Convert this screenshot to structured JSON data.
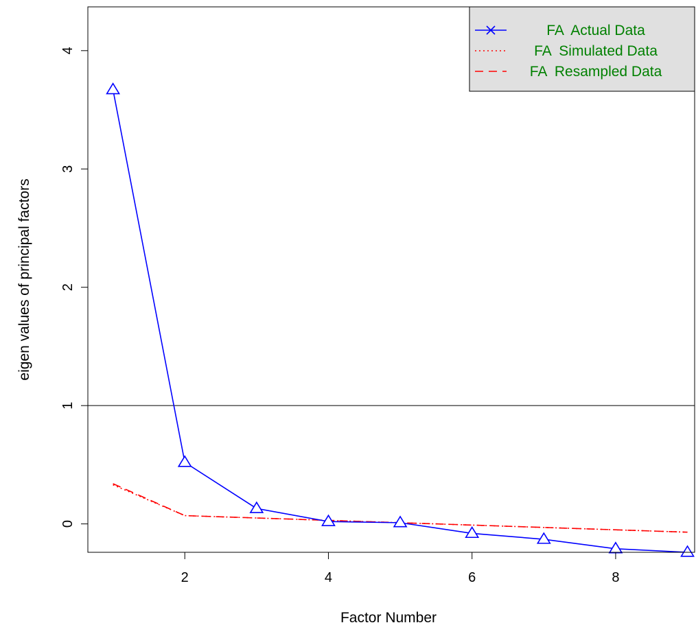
{
  "chart_data": {
    "type": "line",
    "title": "",
    "xlabel": "Factor Number",
    "ylabel": "eigen values of principal factors",
    "xlim": [
      0.65,
      9.1
    ],
    "ylim": [
      -0.24,
      4.37
    ],
    "x_ticks": [
      "2",
      "4",
      "6",
      "8"
    ],
    "y_ticks": [
      "0",
      "1",
      "2",
      "3",
      "4"
    ],
    "x_tick_values": [
      2,
      4,
      6,
      8
    ],
    "y_tick_values": [
      0,
      1,
      2,
      3,
      4
    ],
    "reference_line": 1,
    "x": [
      1,
      2,
      3,
      4,
      5,
      6,
      7,
      8,
      9
    ],
    "series": [
      {
        "name": "FA  Actual Data",
        "values": [
          3.67,
          0.52,
          0.13,
          0.02,
          0.01,
          -0.08,
          -0.13,
          -0.21,
          -0.24
        ],
        "color": "#0000FF",
        "line": "solid",
        "marker": "triangle"
      },
      {
        "name": "FA  Simulated Data",
        "values": [
          0.33,
          0.07,
          0.05,
          0.03,
          0.01,
          -0.01,
          -0.03,
          -0.05,
          -0.07
        ],
        "color": "#FF0000",
        "line": "dotted",
        "marker": "none"
      },
      {
        "name": "FA  Resampled Data",
        "values": [
          0.34,
          0.07,
          0.05,
          0.03,
          0.01,
          -0.01,
          -0.03,
          -0.05,
          -0.07
        ],
        "color": "#FF0000",
        "line": "dashed",
        "marker": "none"
      }
    ],
    "legend": {
      "position": "top-right",
      "background": "#E0E0E0",
      "text_color": "#008000"
    }
  }
}
